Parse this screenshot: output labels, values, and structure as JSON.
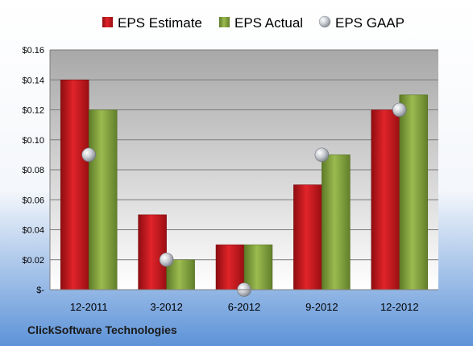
{
  "chart_data": {
    "type": "bar",
    "categories": [
      "12-2011",
      "3-2012",
      "6-2012",
      "9-2012",
      "12-2012"
    ],
    "series": [
      {
        "name": "EPS Estimate",
        "values": [
          0.14,
          0.05,
          0.03,
          0.07,
          0.12
        ],
        "color": "#c8171c"
      },
      {
        "name": "EPS Actual",
        "values": [
          0.12,
          0.02,
          0.03,
          0.09,
          0.13
        ],
        "color": "#86a23c"
      }
    ],
    "points": {
      "name": "EPS GAAP",
      "values": [
        0.09,
        0.02,
        0.0,
        0.09,
        0.12
      ],
      "color": "#b8bcc4"
    },
    "ylim": [
      0,
      0.16
    ],
    "yticks": [
      0,
      0.02,
      0.04,
      0.06,
      0.08,
      0.1,
      0.12,
      0.14,
      0.16
    ],
    "ytick_labels": [
      "$-",
      "$0.02",
      "$0.04",
      "$0.06",
      "$0.08",
      "$0.10",
      "$0.12",
      "$0.14",
      "$0.16"
    ],
    "grid": true,
    "legend": "top-center",
    "company": "ClickSoftware Technologies"
  }
}
